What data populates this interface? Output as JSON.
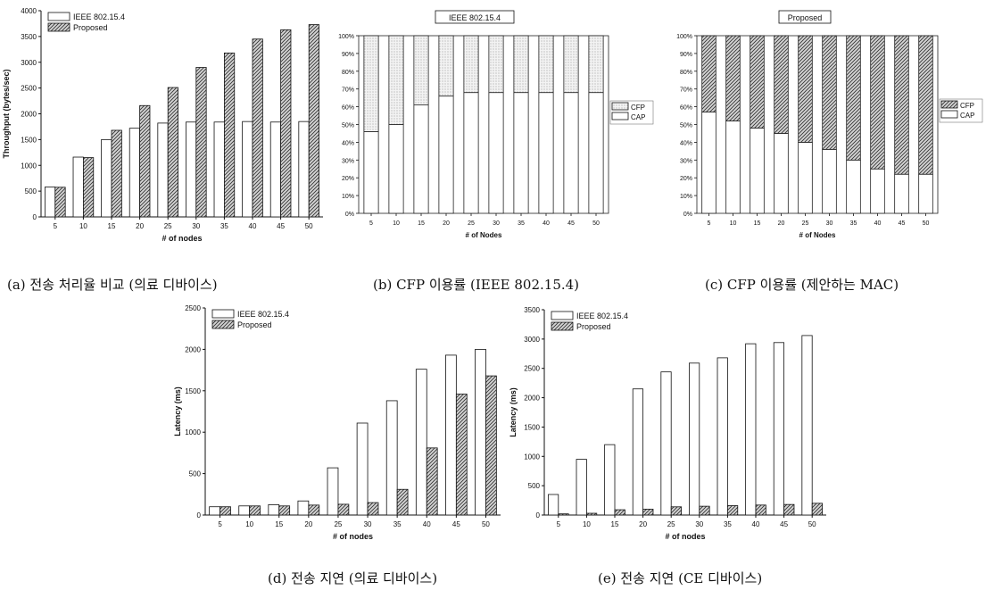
{
  "chart_data": [
    {
      "id": "a",
      "type": "bar",
      "title": "",
      "xlabel": "# of nodes",
      "ylabel": "Throughput (bytes/sec)",
      "ylim": [
        0,
        4000
      ],
      "yticks": [
        "0",
        "500",
        "1000",
        "1500",
        "2000",
        "2500",
        "3000",
        "3500",
        "4000"
      ],
      "categories": [
        "5",
        "10",
        "15",
        "20",
        "25",
        "30",
        "35",
        "40",
        "45",
        "50"
      ],
      "series": [
        {
          "name": "IEEE 802.15.4",
          "values": [
            580,
            1160,
            1500,
            1720,
            1820,
            1840,
            1840,
            1850,
            1840,
            1850
          ]
        },
        {
          "name": "Proposed",
          "values": [
            575,
            1150,
            1680,
            2160,
            2510,
            2900,
            3180,
            3450,
            3630,
            3730
          ]
        }
      ],
      "legend": "top-left",
      "caption": "(a) 전송 처리율 비교 (의료 디바이스)"
    },
    {
      "id": "b",
      "type": "bar",
      "stacked": true,
      "title": "IEEE 802.15.4",
      "xlabel": "# of Nodes",
      "ylabel": "",
      "ylim": [
        0,
        100
      ],
      "yticks": [
        "0%",
        "10%",
        "20%",
        "30%",
        "40%",
        "50%",
        "60%",
        "70%",
        "80%",
        "90%",
        "100%"
      ],
      "categories": [
        "5",
        "10",
        "15",
        "20",
        "25",
        "30",
        "35",
        "40",
        "45",
        "50"
      ],
      "series": [
        {
          "name": "CAP",
          "values": [
            46,
            50,
            61,
            66,
            68,
            68,
            68,
            68,
            68,
            68
          ]
        },
        {
          "name": "CFP",
          "values": [
            54,
            50,
            39,
            34,
            32,
            32,
            32,
            32,
            32,
            32
          ]
        }
      ],
      "legend": "right",
      "caption": "(b) CFP 이용률 (IEEE 802.15.4)"
    },
    {
      "id": "c",
      "type": "bar",
      "stacked": true,
      "title": "Proposed",
      "xlabel": "# of Nodes",
      "ylabel": "",
      "ylim": [
        0,
        100
      ],
      "yticks": [
        "0%",
        "10%",
        "20%",
        "30%",
        "40%",
        "50%",
        "60%",
        "70%",
        "80%",
        "90%",
        "100%"
      ],
      "categories": [
        "5",
        "10",
        "15",
        "20",
        "25",
        "30",
        "35",
        "40",
        "45",
        "50"
      ],
      "series": [
        {
          "name": "CAP",
          "values": [
            57,
            52,
            48,
            45,
            40,
            36,
            30,
            25,
            22,
            22
          ]
        },
        {
          "name": "CFP",
          "values": [
            43,
            48,
            52,
            55,
            60,
            64,
            70,
            75,
            78,
            78
          ]
        }
      ],
      "legend": "right",
      "caption": "(c) CFP 이용률 (제안하는 MAC)"
    },
    {
      "id": "d",
      "type": "bar",
      "title": "",
      "xlabel": "# of nodes",
      "ylabel": "Latency (ms)",
      "ylim": [
        0,
        2500
      ],
      "yticks": [
        "0",
        "500",
        "1000",
        "1500",
        "2000",
        "2500"
      ],
      "categories": [
        "5",
        "10",
        "15",
        "20",
        "25",
        "30",
        "35",
        "40",
        "45",
        "50"
      ],
      "series": [
        {
          "name": "IEEE 802.15.4",
          "values": [
            100,
            110,
            125,
            170,
            570,
            1110,
            1380,
            1760,
            1930,
            2000
          ]
        },
        {
          "name": "Proposed",
          "values": [
            100,
            110,
            110,
            120,
            130,
            150,
            310,
            810,
            1460,
            1680
          ]
        }
      ],
      "legend": "top-left",
      "caption": "(d) 전송 지연 (의료 디바이스)"
    },
    {
      "id": "e",
      "type": "bar",
      "title": "",
      "xlabel": "# of nodes",
      "ylabel": "Latency (ms)",
      "ylim": [
        0,
        3500
      ],
      "yticks": [
        "0",
        "500",
        "1000",
        "1500",
        "2000",
        "2500",
        "3000",
        "3500"
      ],
      "categories": [
        "5",
        "10",
        "15",
        "20",
        "25",
        "30",
        "35",
        "40",
        "45",
        "50"
      ],
      "series": [
        {
          "name": "IEEE 802.15.4",
          "values": [
            350,
            950,
            1200,
            2150,
            2440,
            2590,
            2680,
            2920,
            2940,
            3060
          ]
        },
        {
          "name": "Proposed",
          "values": [
            20,
            30,
            90,
            100,
            140,
            150,
            160,
            170,
            180,
            200
          ]
        }
      ],
      "legend": "top-left",
      "caption": "(e) 전송 지연 (CE 디바이스)"
    }
  ]
}
